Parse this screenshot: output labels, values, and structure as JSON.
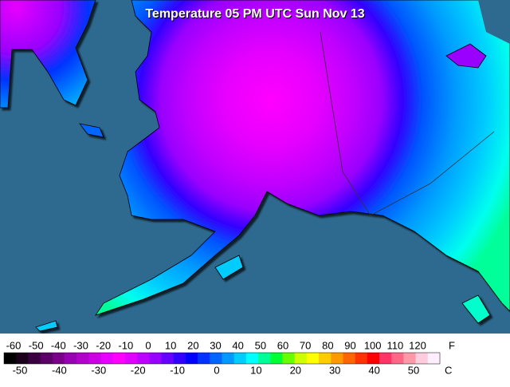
{
  "title": "Temperature 05 PM UTC Sun Nov 13",
  "legend": {
    "fahrenheit_unit": "F",
    "celsius_unit": "C",
    "fahrenheit_ticks": [
      -60,
      -50,
      -40,
      -30,
      -20,
      -10,
      0,
      10,
      20,
      30,
      40,
      50,
      60,
      70,
      80,
      90,
      100,
      110,
      120
    ],
    "celsius_ticks": [
      -50,
      -40,
      -30,
      -20,
      -10,
      0,
      10,
      20,
      30,
      40,
      50
    ],
    "colors": [
      "#000000",
      "#1a001a",
      "#3a0040",
      "#5a0066",
      "#7a008c",
      "#9900b3",
      "#b300cc",
      "#cc00e6",
      "#e600ff",
      "#ff00ff",
      "#e000ff",
      "#c000ff",
      "#9900ff",
      "#6600ff",
      "#3300ff",
      "#0000ff",
      "#0033ff",
      "#0066ff",
      "#0099ff",
      "#00ccff",
      "#00ffff",
      "#00ff99",
      "#00ff33",
      "#66ff00",
      "#ccff00",
      "#ffff00",
      "#ffcc00",
      "#ff9900",
      "#ff6600",
      "#ff3300",
      "#ff0000",
      "#ff3366",
      "#ff6688",
      "#ff99aa",
      "#ffccdd",
      "#ffeeff"
    ]
  }
}
